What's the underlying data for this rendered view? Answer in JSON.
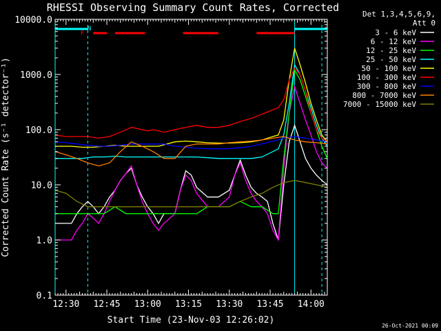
{
  "chart_data": {
    "type": "line",
    "title": "RHESSI Observing Summary Count Rates, Corrected",
    "xlabel": "Start Time (23-Nov-03 12:26:02)",
    "ylabel": "Corrected Count Rate (s⁻¹ detector⁻¹)",
    "ylog": true,
    "ylim": [
      0.1,
      10000
    ],
    "xlim_minutes": [
      0,
      100
    ],
    "x_ticks": [
      {
        "t": 4,
        "label": "12:30"
      },
      {
        "t": 19,
        "label": "12:45"
      },
      {
        "t": 34,
        "label": "13:00"
      },
      {
        "t": 49,
        "label": "13:15"
      },
      {
        "t": 64,
        "label": "13:30"
      },
      {
        "t": 79,
        "label": "13:45"
      },
      {
        "t": 94,
        "label": "14:00"
      }
    ],
    "y_ticks": [
      {
        "v": 0.1,
        "label": "0.1"
      },
      {
        "v": 1,
        "label": "1.0"
      },
      {
        "v": 10,
        "label": "10.0"
      },
      {
        "v": 100,
        "label": "100.0"
      },
      {
        "v": 1000,
        "label": "1000.0"
      },
      {
        "v": 10000,
        "label": "10000.0"
      }
    ],
    "legend_header": [
      "Det 1,3,4,5,6,9,",
      "Att 0"
    ],
    "legend_position": "right",
    "series": [
      {
        "name": "3 - 6 keV",
        "color": "#ffffff",
        "x": [
          0,
          6,
          8,
          10,
          12,
          14,
          16,
          18,
          20,
          22,
          24,
          26,
          28,
          30,
          32,
          34,
          36,
          38,
          40,
          44,
          46,
          48,
          50,
          52,
          56,
          60,
          64,
          66,
          68,
          70,
          72,
          74,
          76,
          78,
          80,
          82,
          84,
          86,
          88,
          90,
          92,
          94,
          96,
          98,
          100
        ],
        "y": [
          2,
          2,
          3,
          4,
          5,
          4,
          3,
          4,
          6,
          8,
          12,
          16,
          20,
          10,
          6,
          4,
          3,
          2,
          3,
          3,
          8,
          18,
          15,
          9,
          6,
          6,
          8,
          15,
          28,
          15,
          9,
          7,
          6,
          5,
          2,
          1,
          10,
          60,
          120,
          60,
          30,
          20,
          15,
          12,
          10
        ]
      },
      {
        "name": "6 - 12 keV",
        "color": "#ff00ff",
        "x": [
          0,
          6,
          8,
          10,
          12,
          14,
          16,
          18,
          20,
          22,
          24,
          26,
          28,
          30,
          32,
          34,
          36,
          38,
          40,
          44,
          46,
          48,
          50,
          52,
          56,
          60,
          64,
          66,
          68,
          70,
          72,
          74,
          76,
          78,
          80,
          82,
          84,
          86,
          88,
          90,
          92,
          94,
          96,
          98,
          100
        ],
        "y": [
          1,
          1,
          1.5,
          2,
          3,
          2.5,
          2,
          3,
          5,
          8,
          12,
          16,
          22,
          10,
          5,
          3,
          2,
          1.5,
          2,
          3,
          8,
          15,
          12,
          7,
          4,
          4,
          6,
          15,
          25,
          12,
          7,
          5,
          4,
          3,
          1.5,
          1,
          20,
          200,
          600,
          300,
          150,
          80,
          40,
          25,
          20
        ]
      },
      {
        "name": "12 - 25 keV",
        "color": "#00ff00",
        "x": [
          0,
          6,
          10,
          14,
          18,
          22,
          26,
          30,
          34,
          38,
          44,
          48,
          52,
          56,
          60,
          64,
          68,
          72,
          76,
          80,
          82,
          84,
          86,
          88,
          90,
          92,
          94,
          96,
          98,
          100
        ],
        "y": [
          3,
          3,
          3,
          3,
          3,
          4,
          3,
          3,
          3,
          3,
          3,
          3,
          3,
          4,
          4,
          4,
          5,
          4,
          4,
          3,
          3,
          30,
          200,
          1200,
          800,
          400,
          200,
          100,
          50,
          30
        ]
      },
      {
        "name": "25 - 50 keV",
        "color": "#00ffff",
        "x": [
          0,
          6,
          10,
          14,
          18,
          22,
          26,
          30,
          34,
          38,
          44,
          48,
          52,
          56,
          60,
          64,
          68,
          72,
          76,
          80,
          82,
          84,
          86,
          88,
          90,
          92,
          94,
          96,
          98,
          100
        ],
        "y": [
          30,
          30,
          30,
          32,
          32,
          33,
          32,
          32,
          32,
          32,
          32,
          32,
          32,
          31,
          30,
          30,
          30,
          30,
          32,
          40,
          45,
          80,
          300,
          1500,
          1000,
          500,
          250,
          120,
          70,
          50
        ]
      },
      {
        "name": "50 - 100 keV",
        "color": "#ffff00",
        "x": [
          0,
          6,
          10,
          14,
          18,
          22,
          26,
          30,
          34,
          38,
          44,
          48,
          52,
          56,
          60,
          64,
          68,
          72,
          76,
          80,
          82,
          84,
          86,
          88,
          90,
          92,
          94,
          96,
          98,
          100
        ],
        "y": [
          50,
          50,
          48,
          48,
          50,
          52,
          50,
          50,
          50,
          50,
          60,
          62,
          60,
          58,
          57,
          57,
          58,
          60,
          65,
          75,
          80,
          150,
          800,
          3000,
          1500,
          700,
          300,
          150,
          80,
          60
        ]
      },
      {
        "name": "100 - 300 keV",
        "color": "#ff0000",
        "x": [
          0,
          4,
          8,
          12,
          16,
          20,
          24,
          28,
          32,
          34,
          36,
          40,
          44,
          48,
          52,
          56,
          60,
          64,
          68,
          72,
          76,
          80,
          82,
          84,
          86,
          88,
          90,
          92,
          94,
          96,
          98,
          100
        ],
        "y": [
          80,
          75,
          75,
          75,
          70,
          75,
          90,
          110,
          100,
          95,
          100,
          90,
          100,
          110,
          120,
          110,
          110,
          120,
          140,
          160,
          190,
          230,
          250,
          350,
          800,
          1300,
          1000,
          500,
          200,
          100,
          70,
          60
        ]
      },
      {
        "name": "300 - 800 keV",
        "color": "#0000ff",
        "x": [
          0,
          4,
          8,
          12,
          16,
          20,
          24,
          28,
          32,
          36,
          40,
          44,
          48,
          52,
          56,
          60,
          64,
          68,
          72,
          76,
          80,
          84,
          88,
          92,
          96,
          100
        ],
        "y": [
          60,
          58,
          55,
          52,
          50,
          50,
          52,
          55,
          55,
          55,
          55,
          50,
          48,
          46,
          45,
          45,
          45,
          47,
          50,
          55,
          62,
          70,
          75,
          70,
          65,
          60
        ]
      },
      {
        "name": "800 - 7000 keV",
        "color": "#ff8000",
        "x": [
          0,
          4,
          8,
          12,
          16,
          20,
          24,
          28,
          32,
          36,
          40,
          44,
          48,
          52,
          56,
          60,
          64,
          68,
          72,
          76,
          80,
          84,
          88,
          92,
          96,
          100
        ],
        "y": [
          40,
          35,
          30,
          25,
          22,
          25,
          40,
          60,
          50,
          40,
          30,
          30,
          50,
          55,
          55,
          55,
          58,
          60,
          62,
          65,
          70,
          75,
          65,
          60,
          58,
          55
        ]
      },
      {
        "name": "7000 - 15000 keV",
        "color": "#808000",
        "x": [
          0,
          4,
          8,
          12,
          16,
          20,
          24,
          28,
          32,
          36,
          40,
          44,
          48,
          52,
          56,
          60,
          64,
          68,
          72,
          76,
          80,
          84,
          88,
          92,
          96,
          100
        ],
        "y": [
          8,
          7,
          5,
          4,
          4,
          4,
          4,
          4,
          4,
          4,
          4,
          4,
          4,
          4,
          4,
          4,
          4,
          5,
          6,
          7,
          9,
          11,
          12,
          11,
          10,
          9
        ]
      }
    ],
    "attenuator_bars": [
      [
        0,
        12
      ],
      [
        88,
        100
      ]
    ],
    "flag_bars": [
      [
        14,
        19
      ],
      [
        22,
        33
      ],
      [
        47,
        60
      ],
      [
        74,
        88
      ]
    ],
    "markers": [
      {
        "t": 12,
        "label": "N"
      },
      {
        "t": 11,
        "label": "F"
      }
    ],
    "night_lines": [
      0,
      12,
      88,
      98
    ]
  },
  "footer": {
    "date": "26-Oct-2021 00:09"
  }
}
